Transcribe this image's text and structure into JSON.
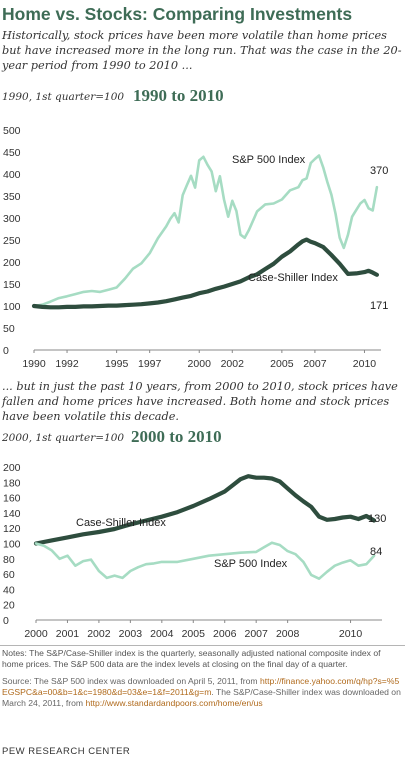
{
  "title": "Home vs. Stocks: Comparing Investments",
  "intro": "Historically, stock prices have been more volatile than home prices but have increased more in the long run. That was the case in the 20-year period from 1990 to 2010 ...",
  "intro2": "... but in just the past 10 years, from 2000 to 2010, stock prices have fallen and home prices have increased. Both home and stock prices have been volatile this decade.",
  "colors": {
    "title": "#3e6c56",
    "sp500": "#a6dcc3",
    "case_shiller": "#2e4d3e"
  },
  "chart_data": [
    {
      "type": "line",
      "subtitle": "1990, 1st quarter=100",
      "period": "1990 to 2010",
      "ylim": [
        0,
        500
      ],
      "xlim": [
        1990,
        2011
      ],
      "yticks": [
        "0",
        "50",
        "100",
        "150",
        "200",
        "250",
        "300",
        "350",
        "400",
        "450",
        "500"
      ],
      "xticks": [
        "1990",
        "1992",
        "1995",
        "1997",
        "2000",
        "2002",
        "2005",
        "2007",
        "2010"
      ],
      "grid": false,
      "end_labels": [
        "370",
        "171"
      ],
      "series": [
        {
          "name": "S&P 500 Index",
          "x": [
            1990.0,
            1990.5,
            1991.0,
            1991.5,
            1992.0,
            1992.5,
            1993.0,
            1993.5,
            1994.0,
            1994.5,
            1995.0,
            1995.5,
            1996.0,
            1996.5,
            1997.0,
            1997.5,
            1998.0,
            1998.25,
            1998.5,
            1998.75,
            1999.0,
            1999.25,
            1999.5,
            1999.75,
            2000.0,
            2000.25,
            2000.5,
            2000.75,
            2001.0,
            2001.25,
            2001.5,
            2001.75,
            2002.0,
            2002.25,
            2002.5,
            2002.75,
            2003.0,
            2003.5,
            2004.0,
            2004.5,
            2005.0,
            2005.5,
            2006.0,
            2006.25,
            2006.5,
            2006.75,
            2007.0,
            2007.25,
            2007.5,
            2007.75,
            2008.0,
            2008.25,
            2008.5,
            2008.75,
            2009.0,
            2009.25,
            2009.5,
            2009.75,
            2010.0,
            2010.25,
            2010.5,
            2010.75
          ],
          "values": [
            100,
            103,
            110,
            118,
            122,
            127,
            132,
            134,
            132,
            137,
            142,
            162,
            185,
            197,
            220,
            254,
            281,
            298,
            311,
            290,
            352,
            374,
            396,
            369,
            431,
            439,
            421,
            406,
            361,
            395,
            342,
            303,
            339,
            316,
            262,
            255,
            272,
            315,
            331,
            333,
            342,
            363,
            370,
            386,
            390,
            425,
            434,
            442,
            415,
            382,
            353,
            309,
            255,
            232,
            262,
            303,
            318,
            333,
            341,
            322,
            317,
            370
          ]
        },
        {
          "name": "Case-Shiller Index",
          "x": [
            1990.0,
            1990.5,
            1991.0,
            1991.5,
            1992.0,
            1992.5,
            1993.0,
            1993.5,
            1994.0,
            1994.5,
            1995.0,
            1995.5,
            1996.0,
            1996.5,
            1997.0,
            1997.5,
            1998.0,
            1998.5,
            1999.0,
            1999.5,
            2000.0,
            2000.5,
            2001.0,
            2001.5,
            2002.0,
            2002.5,
            2003.0,
            2003.5,
            2004.0,
            2004.5,
            2005.0,
            2005.5,
            2006.0,
            2006.25,
            2006.5,
            2006.75,
            2007.0,
            2007.5,
            2008.0,
            2008.5,
            2009.0,
            2009.5,
            2010.0,
            2010.25,
            2010.5,
            2010.75
          ],
          "values": [
            100,
            98,
            97,
            97,
            98,
            98,
            99,
            99,
            100,
            101,
            101,
            102,
            103,
            104,
            106,
            108,
            111,
            115,
            119,
            123,
            129,
            133,
            139,
            144,
            150,
            156,
            165,
            172,
            184,
            196,
            212,
            224,
            240,
            247,
            251,
            246,
            243,
            234,
            216,
            196,
            173,
            174,
            177,
            180,
            176,
            171
          ]
        }
      ]
    },
    {
      "type": "line",
      "subtitle": "2000, 1st quarter=100",
      "period": "2000 to 2010",
      "ylim": [
        0,
        200
      ],
      "xlim": [
        2000,
        2011
      ],
      "yticks": [
        "0",
        "20",
        "40",
        "60",
        "80",
        "100",
        "120",
        "140",
        "160",
        "180",
        "200"
      ],
      "xticks": [
        "2000",
        "2001",
        "2002",
        "2003",
        "2004",
        "2005",
        "2006",
        "2007",
        "2008",
        "2010"
      ],
      "grid": false,
      "end_labels": [
        "130",
        "84"
      ],
      "series": [
        {
          "name": "Case-Shiller Index",
          "x": [
            2000.0,
            2000.5,
            2001.0,
            2001.5,
            2002.0,
            2002.5,
            2003.0,
            2003.5,
            2004.0,
            2004.5,
            2005.0,
            2005.5,
            2006.0,
            2006.25,
            2006.5,
            2006.75,
            2007.0,
            2007.25,
            2007.5,
            2007.75,
            2008.0,
            2008.25,
            2008.5,
            2008.75,
            2009.0,
            2009.25,
            2009.5,
            2009.75,
            2010.0,
            2010.25,
            2010.5,
            2010.75
          ],
          "values": [
            100,
            104,
            108,
            112,
            115,
            119,
            125,
            130,
            135,
            141,
            149,
            158,
            168,
            176,
            184,
            188,
            186,
            186,
            185,
            181,
            172,
            163,
            155,
            148,
            135,
            131,
            132,
            134,
            135,
            132,
            136,
            130
          ]
        },
        {
          "name": "S&P 500 Index",
          "x": [
            2000.0,
            2000.25,
            2000.5,
            2000.75,
            2001.0,
            2001.25,
            2001.5,
            2001.75,
            2002.0,
            2002.25,
            2002.5,
            2002.75,
            2003.0,
            2003.25,
            2003.5,
            2003.75,
            2004.0,
            2004.5,
            2005.0,
            2005.5,
            2006.0,
            2006.5,
            2007.0,
            2007.25,
            2007.5,
            2007.75,
            2008.0,
            2008.25,
            2008.5,
            2008.75,
            2009.0,
            2009.25,
            2009.5,
            2009.75,
            2010.0,
            2010.25,
            2010.5,
            2010.75
          ],
          "values": [
            100,
            97,
            91,
            80,
            84,
            71,
            77,
            79,
            64,
            55,
            58,
            55,
            64,
            69,
            73,
            74,
            76,
            76,
            80,
            84,
            86,
            88,
            89,
            95,
            101,
            98,
            90,
            86,
            76,
            59,
            54,
            63,
            71,
            75,
            78,
            71,
            73,
            84
          ]
        }
      ]
    }
  ],
  "labels": {
    "c1_sp": "S&P 500 Index",
    "c1_cs": "Case-Shiller Index",
    "c2_cs": "Case-Shiller Index",
    "c2_sp": "S&P 500 Index"
  },
  "notes": "Notes: The S&P/Case-Shiller index is the quarterly, seasonally adjusted national composite index of home prices. The S&P 500 data are the index levels at closing on the final day of a quarter.",
  "source_pre": "Source: The S&P 500 index was downloaded on April 5, 2011, from ",
  "source_link1": "http://finance.yahoo.com/q/hp?s=%5EGSPC&a=00&b=1&c=1980&d=03&e=1&f=2011&g=m",
  "source_mid": ". The S&P/Case-Shiller index was downloaded on March 24, 2011, from ",
  "source_link2": "http://www.standardandpoors.com/home/en/us",
  "brand": "PEW RESEARCH CENTER"
}
